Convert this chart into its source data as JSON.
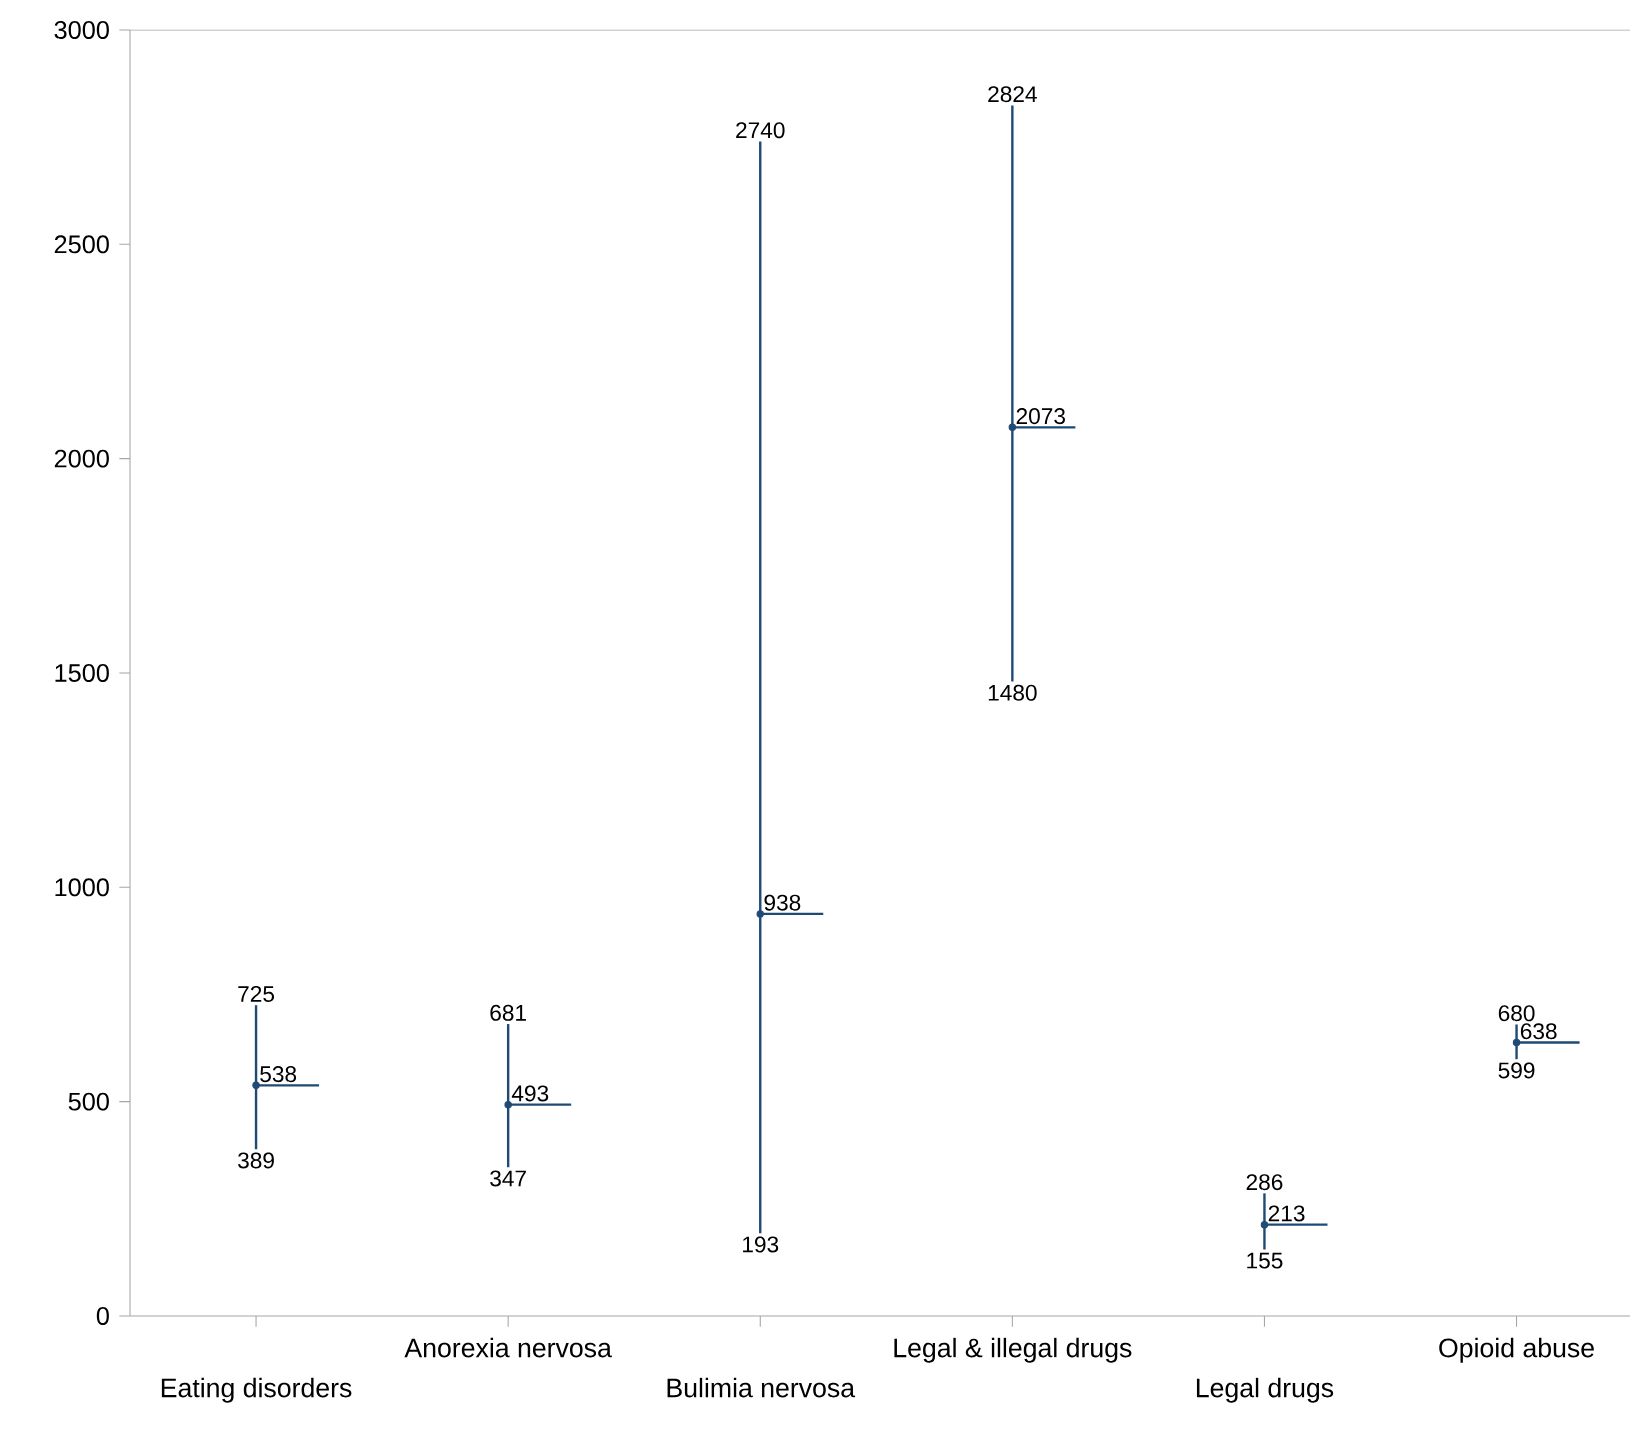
{
  "chart_data": {
    "type": "scatter",
    "categories": [
      "Eating disorders",
      "Anorexia nervosa",
      "Bulimia nervosa",
      "Legal & illegal drugs",
      "Legal drugs",
      "Opioid abuse"
    ],
    "values": [
      538,
      493,
      938,
      2073,
      213,
      638
    ],
    "errors": [
      [
        389,
        725
      ],
      [
        347,
        681
      ],
      [
        193,
        2740
      ],
      [
        1480,
        2824
      ],
      [
        155,
        286
      ],
      [
        599,
        680
      ]
    ],
    "annotations": [
      {
        "text": "725",
        "x": "Eating disorders",
        "y": 725
      },
      {
        "text": "389",
        "x": "Eating disorders",
        "y": 389
      },
      {
        "text": "681",
        "x": "Anorexia nervosa",
        "y": 681
      },
      {
        "text": "347",
        "x": "Anorexia nervosa",
        "y": 347
      },
      {
        "text": "2740",
        "x": "Bulimia nervosa",
        "y": 2740
      },
      {
        "text": "193",
        "x": "Bulimia nervosa",
        "y": 193
      },
      {
        "text": "2824",
        "x": "Legal & illegal drugs",
        "y": 2824
      },
      {
        "text": "1480",
        "x": "Legal & illegal drugs",
        "y": 1480
      },
      {
        "text": "286",
        "x": "Legal drugs",
        "y": 286
      },
      {
        "text": "155",
        "x": "Legal drugs",
        "y": 155
      },
      {
        "text": "680",
        "x": "Opioid abuse",
        "y": 680
      },
      {
        "text": "599",
        "x": "Opioid abuse",
        "y": 599
      }
    ],
    "color": "#1f4a75",
    "ylim": [
      0,
      3000
    ],
    "yticks": [
      0,
      500,
      1000,
      1500,
      2000,
      2500,
      3000
    ],
    "data_labels": true
  }
}
